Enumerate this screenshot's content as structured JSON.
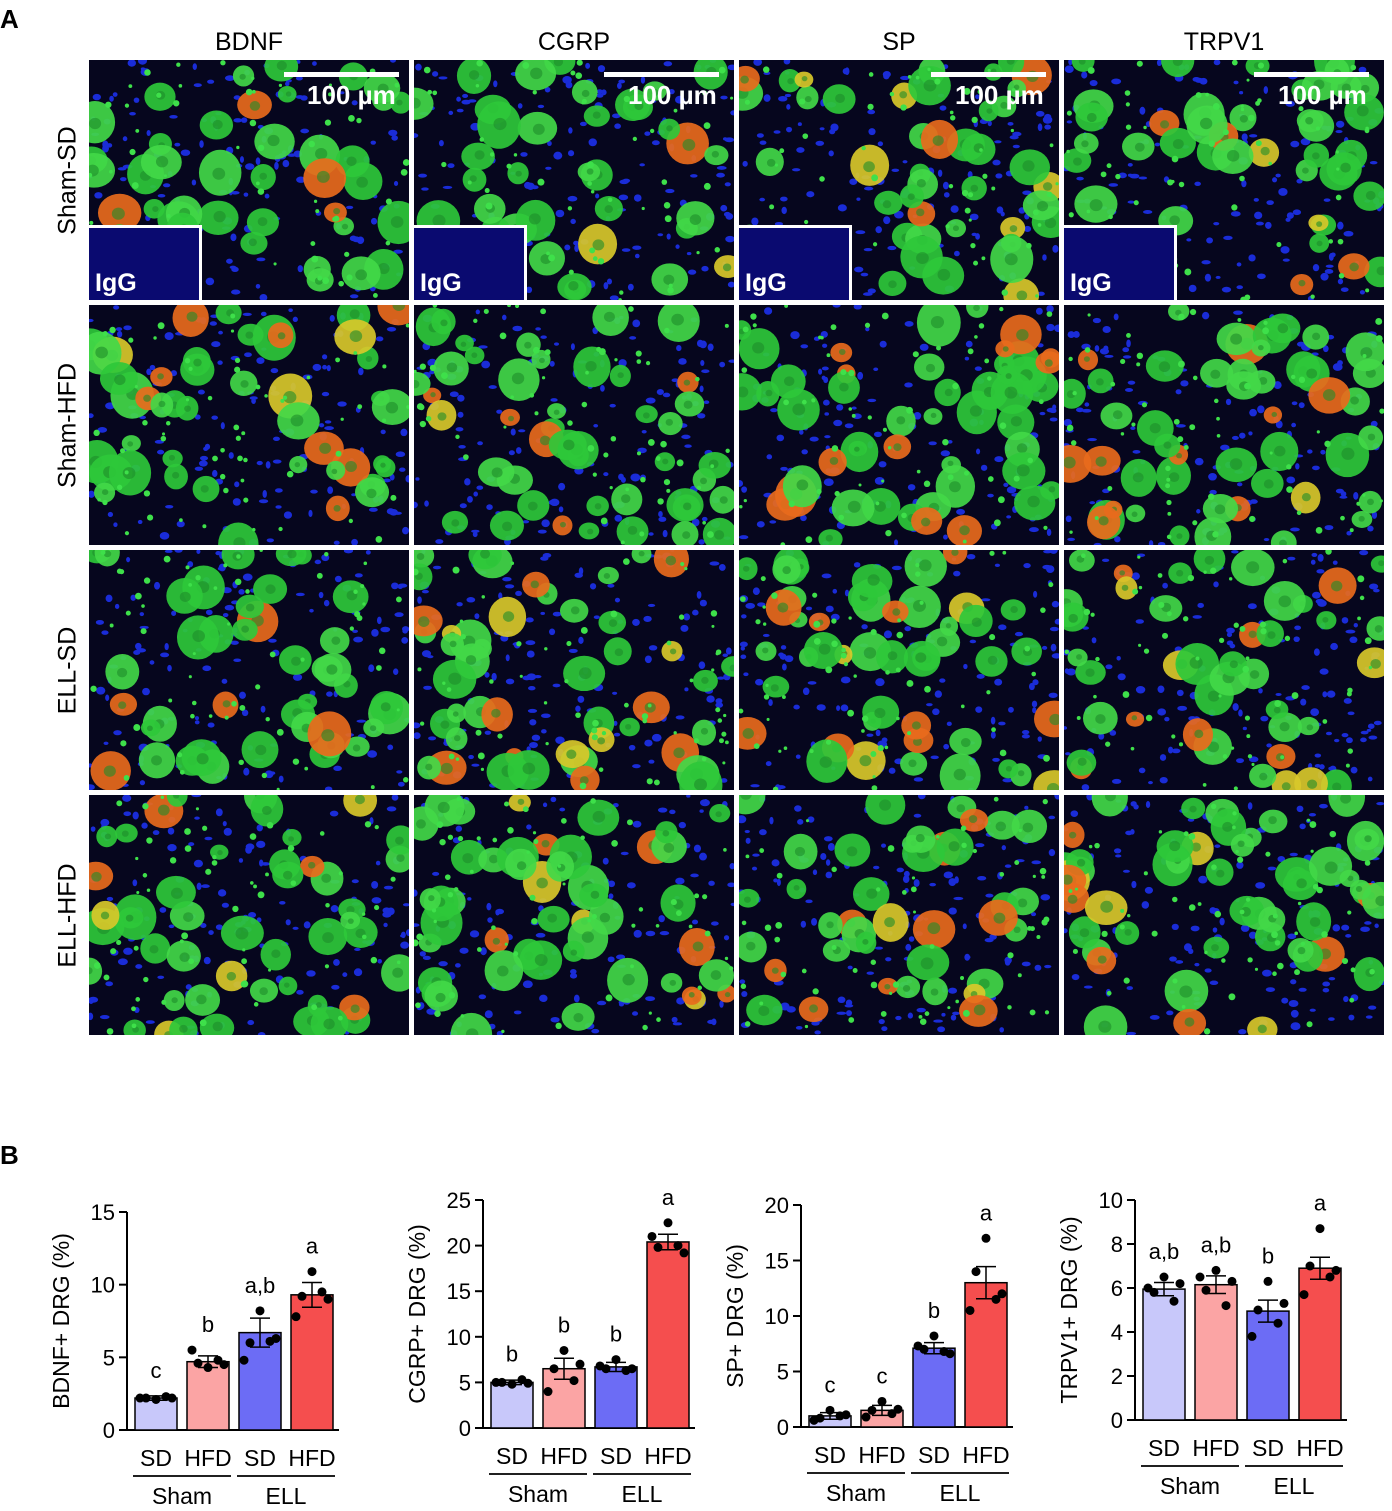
{
  "panel_a": {
    "letter": "A",
    "columns": [
      "BDNF",
      "CGRP",
      "SP",
      "TRPV1"
    ],
    "rows": [
      "Sham-SD",
      "Sham-HFD",
      "ELL-SD",
      "ELL-HFD"
    ],
    "scale_bar_label": "100 µm",
    "inset_label": "IgG"
  },
  "panel_b": {
    "letter": "B"
  },
  "colors": {
    "Sham-SD": "#c8c8fa",
    "Sham-HFD": "#fba4a4",
    "ELL-SD": "#6c6cf5",
    "ELL-HFD": "#f54e4e"
  },
  "chart_data": [
    {
      "type": "bar",
      "categories": [
        "SD",
        "HFD",
        "SD",
        "HFD"
      ],
      "groups": [
        "Sham",
        "ELL"
      ],
      "ylabel": "BDNF+ DRG (%)",
      "ylim": [
        0,
        15
      ],
      "yticks": [
        0,
        5,
        10,
        15
      ],
      "values": [
        2.2,
        4.7,
        6.7,
        9.3
      ],
      "sem": [
        0.15,
        0.4,
        1.0,
        0.85
      ],
      "points": [
        [
          2.1,
          2.2,
          2.3,
          2.2,
          2.2
        ],
        [
          4.3,
          4.6,
          4.8,
          5.5,
          4.5
        ],
        [
          8.2,
          6.0,
          6.1,
          4.8,
          6.3
        ],
        [
          10.9,
          9.2,
          9.5,
          7.8,
          9.0
        ]
      ],
      "letters": [
        "c",
        "b",
        "a,b",
        "a"
      ]
    },
    {
      "type": "bar",
      "categories": [
        "SD",
        "HFD",
        "SD",
        "HFD"
      ],
      "groups": [
        "Sham",
        "ELL"
      ],
      "ylabel": "CGRP+ DRG (%)",
      "ylim": [
        0,
        25
      ],
      "yticks": [
        0,
        5,
        10,
        15,
        20,
        25
      ],
      "values": [
        5.0,
        6.5,
        6.7,
        20.4
      ],
      "sem": [
        0.25,
        1.15,
        0.5,
        0.85
      ],
      "points": [
        [
          4.8,
          5.0,
          5.3,
          5.0,
          4.9
        ],
        [
          8.5,
          6.5,
          5.2,
          4.0,
          7.0
        ],
        [
          7.5,
          6.5,
          6.3,
          6.8,
          6.5
        ],
        [
          22.5,
          19.8,
          20.0,
          21.0,
          19.2
        ]
      ],
      "letters": [
        "b",
        "b",
        "b",
        "a"
      ]
    },
    {
      "type": "bar",
      "categories": [
        "SD",
        "HFD",
        "SD",
        "HFD"
      ],
      "groups": [
        "Sham",
        "ELL"
      ],
      "ylabel": "SP+ DRG (%)",
      "ylim": [
        0,
        20
      ],
      "yticks": [
        0,
        5,
        10,
        15,
        20
      ],
      "values": [
        1.0,
        1.5,
        7.1,
        13.0
      ],
      "sem": [
        0.3,
        0.45,
        0.5,
        1.45
      ],
      "points": [
        [
          1.5,
          0.8,
          1.0,
          0.6,
          1.1
        ],
        [
          2.3,
          1.5,
          1.2,
          0.9,
          1.6
        ],
        [
          8.2,
          7.0,
          6.8,
          7.3,
          6.6
        ],
        [
          17.0,
          14.0,
          11.5,
          10.5,
          12.0
        ]
      ],
      "letters": [
        "c",
        "c",
        "b",
        "a"
      ]
    },
    {
      "type": "bar",
      "categories": [
        "SD",
        "HFD",
        "SD",
        "HFD"
      ],
      "groups": [
        "Sham",
        "ELL"
      ],
      "ylabel": "TRPV1+ DRG (%)",
      "ylim": [
        0,
        10
      ],
      "yticks": [
        0,
        2,
        4,
        6,
        8,
        10
      ],
      "values": [
        5.95,
        6.15,
        4.95,
        6.9
      ],
      "sem": [
        0.3,
        0.4,
        0.5,
        0.5
      ],
      "points": [
        [
          6.5,
          5.8,
          5.4,
          6.0,
          6.2
        ],
        [
          6.8,
          5.9,
          5.2,
          6.5,
          6.3
        ],
        [
          6.3,
          5.0,
          4.4,
          3.8,
          5.3
        ],
        [
          8.7,
          7.0,
          6.5,
          5.7,
          6.8
        ]
      ],
      "letters": [
        "a,b",
        "a,b",
        "b",
        "a"
      ]
    }
  ]
}
